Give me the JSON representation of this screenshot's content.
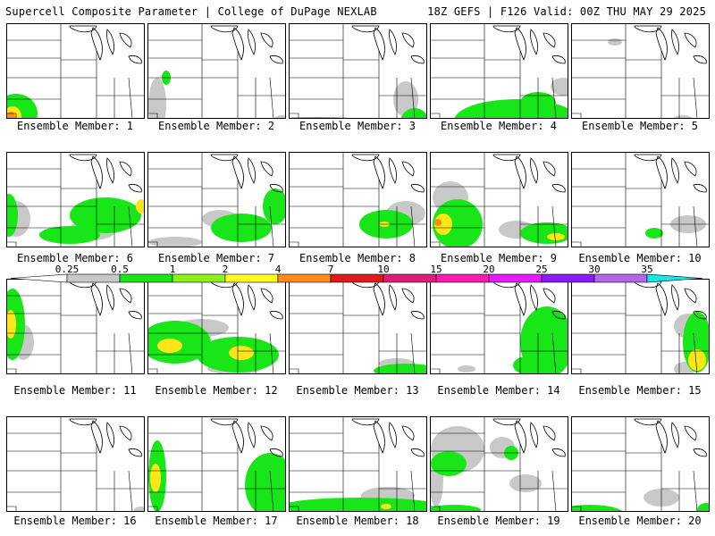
{
  "header": {
    "left_title": "Supercell Composite Parameter | College of DuPage NEXLAB",
    "right_title": "18Z GEFS | F126 Valid: 00Z THU MAY 29 2025"
  },
  "member_label_prefix": "Ensemble Member: ",
  "members": [
    {
      "number": "1",
      "blobs": [
        [
          "#19e619",
          10,
          100,
          24,
          22
        ],
        [
          "#ffe619",
          6,
          104,
          10,
          12
        ],
        [
          "#ff8c19",
          4,
          104,
          5,
          6
        ],
        [
          "#c8c8c8",
          100,
          128,
          18,
          4
        ],
        [
          "#19e619",
          48,
          124,
          36,
          6
        ]
      ]
    },
    {
      "number": "2",
      "blobs": [
        [
          "#19e619",
          20,
          60,
          5,
          8
        ],
        [
          "#19e619",
          36,
          124,
          70,
          8
        ],
        [
          "#c8c8c8",
          10,
          90,
          10,
          30
        ],
        [
          "#19e619",
          120,
          120,
          34,
          10
        ],
        [
          "#c8c8c8",
          150,
          110,
          12,
          8
        ]
      ]
    },
    {
      "number": "3",
      "blobs": [
        [
          "#19e619",
          30,
          118,
          100,
          14
        ],
        [
          "#ffe619",
          60,
          124,
          22,
          4
        ],
        [
          "#c8c8c8",
          130,
          84,
          14,
          20
        ],
        [
          "#19e619",
          140,
          110,
          16,
          16
        ]
      ]
    },
    {
      "number": "4",
      "blobs": [
        [
          "#19e619",
          96,
          108,
          70,
          24
        ],
        [
          "#ffe619",
          62,
          118,
          20,
          7
        ],
        [
          "#ff8c19",
          60,
          120,
          7,
          4
        ],
        [
          "#c8c8c8",
          148,
          70,
          14,
          10
        ],
        [
          "#19e619",
          120,
          88,
          20,
          12
        ]
      ]
    },
    {
      "number": "5",
      "blobs": [
        [
          "#c8c8c8",
          48,
          20,
          8,
          4
        ],
        [
          "#19e619",
          90,
          120,
          70,
          10
        ],
        [
          "#c8c8c8",
          124,
          108,
          12,
          6
        ]
      ]
    },
    {
      "number": "6",
      "blobs": [
        [
          "#19e619",
          2,
          70,
          10,
          24
        ],
        [
          "#c8c8c8",
          10,
          74,
          16,
          20
        ],
        [
          "#19e619",
          110,
          70,
          40,
          20
        ],
        [
          "#ffe619",
          150,
          60,
          6,
          8
        ],
        [
          "#19e619",
          70,
          92,
          34,
          10
        ],
        [
          "#c8c8c8",
          96,
          86,
          26,
          12
        ]
      ]
    },
    {
      "number": "7",
      "blobs": [
        [
          "#19e619",
          104,
          84,
          34,
          16
        ],
        [
          "#c8c8c8",
          80,
          74,
          20,
          10
        ],
        [
          "#19e619",
          142,
          60,
          14,
          20
        ],
        [
          "#c8c8c8",
          30,
          100,
          30,
          6
        ]
      ]
    },
    {
      "number": "8",
      "blobs": [
        [
          "#19e619",
          108,
          80,
          30,
          16
        ],
        [
          "#c8c8c8",
          130,
          68,
          22,
          14
        ],
        [
          "#ffe619",
          106,
          80,
          6,
          3
        ]
      ]
    },
    {
      "number": "9",
      "blobs": [
        [
          "#19e619",
          30,
          80,
          28,
          28
        ],
        [
          "#ffe619",
          14,
          80,
          10,
          12
        ],
        [
          "#ff8c19",
          8,
          78,
          4,
          4
        ],
        [
          "#c8c8c8",
          22,
          50,
          20,
          18
        ],
        [
          "#19e619",
          130,
          90,
          30,
          12
        ],
        [
          "#ffe619",
          140,
          94,
          10,
          4
        ],
        [
          "#c8c8c8",
          96,
          86,
          20,
          10
        ]
      ]
    },
    {
      "number": "10",
      "blobs": [
        [
          "#c8c8c8",
          130,
          80,
          20,
          10
        ],
        [
          "#19e619",
          92,
          90,
          10,
          6
        ]
      ]
    },
    {
      "number": "11",
      "blobs": [
        [
          "#19e619",
          6,
          50,
          14,
          40
        ],
        [
          "#ffe619",
          4,
          50,
          6,
          16
        ],
        [
          "#c8c8c8",
          18,
          70,
          12,
          20
        ]
      ]
    },
    {
      "number": "12",
      "blobs": [
        [
          "#19e619",
          30,
          70,
          40,
          24
        ],
        [
          "#ffe619",
          24,
          74,
          14,
          8
        ],
        [
          "#19e619",
          100,
          84,
          46,
          20
        ],
        [
          "#ffe619",
          104,
          82,
          14,
          8
        ],
        [
          "#c8c8c8",
          60,
          54,
          30,
          10
        ],
        [
          "#c8c8c8",
          96,
          100,
          30,
          6
        ]
      ]
    },
    {
      "number": "13",
      "blobs": [
        [
          "#19e619",
          130,
          102,
          36,
          8
        ],
        [
          "#c8c8c8",
          120,
          94,
          20,
          6
        ]
      ]
    },
    {
      "number": "14",
      "blobs": [
        [
          "#19e619",
          130,
          70,
          30,
          40
        ],
        [
          "#19e619",
          108,
          96,
          16,
          10
        ],
        [
          "#c8c8c8",
          40,
          100,
          10,
          4
        ]
      ]
    },
    {
      "number": "15",
      "blobs": [
        [
          "#19e619",
          140,
          70,
          16,
          34
        ],
        [
          "#ffe619",
          140,
          90,
          10,
          12
        ],
        [
          "#c8c8c8",
          130,
          52,
          16,
          14
        ],
        [
          "#c8c8c8",
          126,
          100,
          12,
          8
        ]
      ]
    },
    {
      "number": "16",
      "blobs": [
        [
          "#c8c8c8",
          150,
          104,
          8,
          4
        ]
      ]
    },
    {
      "number": "17",
      "blobs": [
        [
          "#19e619",
          10,
          66,
          10,
          40
        ],
        [
          "#ff8c19",
          8,
          70,
          4,
          8
        ],
        [
          "#ffe619",
          8,
          68,
          6,
          16
        ],
        [
          "#19e619",
          136,
          76,
          28,
          36
        ],
        [
          "#c8c8c8",
          130,
          58,
          10,
          10
        ]
      ]
    },
    {
      "number": "18",
      "blobs": [
        [
          "#19e619",
          80,
          100,
          90,
          10
        ],
        [
          "#c8c8c8",
          40,
          98,
          30,
          6
        ],
        [
          "#c8c8c8",
          110,
          88,
          30,
          10
        ],
        [
          "#ffe619",
          108,
          100,
          6,
          3
        ]
      ]
    },
    {
      "number": "19",
      "blobs": [
        [
          "#c8c8c8",
          30,
          36,
          30,
          26
        ],
        [
          "#19e619",
          20,
          52,
          20,
          14
        ],
        [
          "#c8c8c8",
          80,
          34,
          14,
          12
        ],
        [
          "#19e619",
          90,
          40,
          8,
          8
        ],
        [
          "#c8c8c8",
          6,
          70,
          8,
          30
        ],
        [
          "#19e619",
          26,
          104,
          30,
          6
        ],
        [
          "#c8c8c8",
          106,
          74,
          18,
          10
        ]
      ]
    },
    {
      "number": "20",
      "blobs": [
        [
          "#19e619",
          20,
          110,
          40,
          12
        ],
        [
          "#ffe619",
          14,
          116,
          10,
          6
        ],
        [
          "#c8c8c8",
          100,
          90,
          20,
          10
        ],
        [
          "#19e619",
          150,
          104,
          10,
          8
        ]
      ]
    }
  ],
  "colorbar": {
    "labels": [
      "0.25",
      "0.5",
      "1",
      "2",
      "4",
      "7",
      "10",
      "15",
      "20",
      "25",
      "30",
      "35"
    ],
    "colors": [
      "#c8c8c8",
      "#19e619",
      "#8cf019",
      "#ffff19",
      "#ff8c19",
      "#e61919",
      "#e6197a",
      "#ff19b4",
      "#e619ff",
      "#8c19ff",
      "#b464e6",
      "#19e6e6"
    ]
  }
}
